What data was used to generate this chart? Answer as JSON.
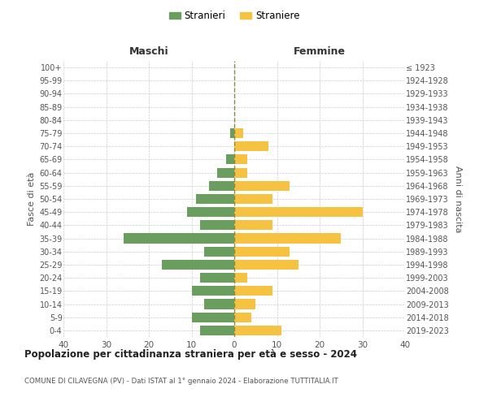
{
  "age_groups": [
    "0-4",
    "5-9",
    "10-14",
    "15-19",
    "20-24",
    "25-29",
    "30-34",
    "35-39",
    "40-44",
    "45-49",
    "50-54",
    "55-59",
    "60-64",
    "65-69",
    "70-74",
    "75-79",
    "80-84",
    "85-89",
    "90-94",
    "95-99",
    "100+"
  ],
  "birth_years": [
    "2019-2023",
    "2014-2018",
    "2009-2013",
    "2004-2008",
    "1999-2003",
    "1994-1998",
    "1989-1993",
    "1984-1988",
    "1979-1983",
    "1974-1978",
    "1969-1973",
    "1964-1968",
    "1959-1963",
    "1954-1958",
    "1949-1953",
    "1944-1948",
    "1939-1943",
    "1934-1938",
    "1929-1933",
    "1924-1928",
    "≤ 1923"
  ],
  "maschi": [
    8,
    10,
    7,
    10,
    8,
    17,
    7,
    26,
    8,
    11,
    9,
    6,
    4,
    2,
    0,
    1,
    0,
    0,
    0,
    0,
    0
  ],
  "femmine": [
    11,
    4,
    5,
    9,
    3,
    15,
    13,
    25,
    9,
    30,
    9,
    13,
    3,
    3,
    8,
    2,
    0,
    0,
    0,
    0,
    0
  ],
  "maschi_color": "#6a9e5e",
  "femmine_color": "#f5c242",
  "title_main": "Popolazione per cittadinanza straniera per età e sesso - 2024",
  "title_sub": "COMUNE DI CILAVEGNA (PV) - Dati ISTAT al 1° gennaio 2024 - Elaborazione TUTTITALIA.IT",
  "ylabel_left": "Fasce di età",
  "ylabel_right": "Anni di nascita",
  "xlabel_maschi": "Maschi",
  "xlabel_femmine": "Femmine",
  "legend_maschi": "Stranieri",
  "legend_femmine": "Straniere",
  "xlim": 40,
  "background_color": "#ffffff",
  "grid_color": "#cccccc"
}
